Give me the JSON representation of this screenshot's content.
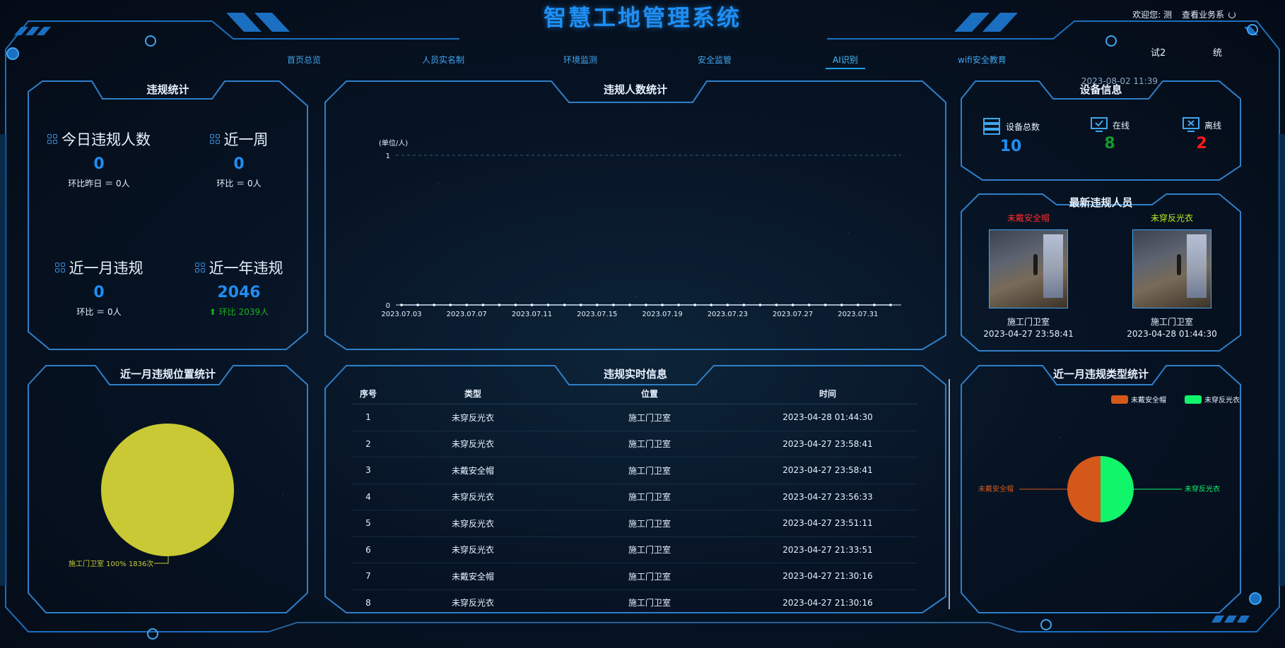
{
  "header": {
    "title": "智慧工地管理系统",
    "welcome": "欢迎您: 测",
    "view_link": "查看业务系",
    "nav": [
      "首页总览",
      "人员实名制",
      "环境监测",
      "安全监管",
      "AI识别",
      "wifi安全教育"
    ],
    "active_nav": "AI识别",
    "right_1": "试2",
    "right_2": "统",
    "datetime": "2023-08-02 11:39"
  },
  "violation_stats": {
    "title": "违规统计",
    "today": {
      "label": "今日违规人数",
      "value": "0",
      "sub": "环比昨日 ＝ 0人"
    },
    "week": {
      "label": "近一周",
      "value": "0",
      "sub": "环比 ＝ 0人"
    },
    "month": {
      "label": "近一月违规",
      "value": "0",
      "sub": "环比 ＝ 0人"
    },
    "year": {
      "label": "近一年违规",
      "value": "2046",
      "sub": "环比 2039人"
    }
  },
  "people_chart": {
    "title": "违规人数统计",
    "unit": "(单位/人)"
  },
  "chart_data": [
    {
      "type": "line",
      "title": "违规人数统计",
      "ylabel": "(单位/人)",
      "ylim": [
        0,
        1
      ],
      "y_ticks": [
        "0",
        "1"
      ],
      "x": [
        "2023.07.03",
        "2023.07.04",
        "2023.07.05",
        "2023.07.06",
        "2023.07.07",
        "2023.07.08",
        "2023.07.09",
        "2023.07.10",
        "2023.07.11",
        "2023.07.12",
        "2023.07.13",
        "2023.07.14",
        "2023.07.15",
        "2023.07.16",
        "2023.07.17",
        "2023.07.18",
        "2023.07.19",
        "2023.07.20",
        "2023.07.21",
        "2023.07.22",
        "2023.07.23",
        "2023.07.24",
        "2023.07.25",
        "2023.07.26",
        "2023.07.27",
        "2023.07.28",
        "2023.07.29",
        "2023.07.30",
        "2023.07.31",
        "2023.08.01",
        "2023.08.02"
      ],
      "x_tick_labels": [
        "2023.07.03",
        "2023.07.07",
        "2023.07.11",
        "2023.07.15",
        "2023.07.19",
        "2023.07.23",
        "2023.07.27",
        "2023.07.31"
      ],
      "series": [
        {
          "values": [
            0,
            0,
            0,
            0,
            0,
            0,
            0,
            0,
            0,
            0,
            0,
            0,
            0,
            0,
            0,
            0,
            0,
            0,
            0,
            0,
            0,
            0,
            0,
            0,
            0,
            0,
            0,
            0,
            0,
            0,
            0
          ]
        }
      ],
      "color": "#ffffff"
    },
    {
      "type": "pie",
      "title": "近一月违规位置统计",
      "slices": [
        {
          "label": "施工门卫室 100% 1836次",
          "value": 1836,
          "color": "#c8c934"
        }
      ]
    },
    {
      "type": "pie",
      "title": "近一月违规类型统计",
      "legend": [
        "未戴安全帽",
        "未穿反光衣"
      ],
      "slices": [
        {
          "label": "未戴安全帽",
          "value": 50,
          "color": "#d4581a"
        },
        {
          "label": "未穿反光衣",
          "value": 50,
          "color": "#10f56a"
        }
      ]
    }
  ],
  "location_chart": {
    "title": "近一月违规位置统计",
    "label": "施工门卫室 100% 1836次"
  },
  "device_info": {
    "title": "设备信息",
    "total": {
      "label": "设备总数",
      "value": "10",
      "color": "#1f8df2"
    },
    "online": {
      "label": "在线",
      "value": "8",
      "color": "#129a2a"
    },
    "offline": {
      "label": "离线",
      "value": "2",
      "color": "#ff1a1a"
    }
  },
  "latest": {
    "title": "最新违规人员",
    "people": [
      {
        "tag": "未戴安全帽",
        "tag_color": "#ff2a2a",
        "location": "施工门卫室",
        "time": "2023-04-27 23:58:41"
      },
      {
        "tag": "未穿反光衣",
        "tag_color": "#b7f21c",
        "location": "施工门卫室",
        "time": "2023-04-28 01:44:30"
      }
    ]
  },
  "realtime": {
    "title": "违规实时信息",
    "columns": [
      "序号",
      "类型",
      "位置",
      "时间"
    ],
    "rows": [
      [
        "1",
        "未穿反光衣",
        "施工门卫室",
        "2023-04-28 01:44:30"
      ],
      [
        "2",
        "未穿反光衣",
        "施工门卫室",
        "2023-04-27 23:58:41"
      ],
      [
        "3",
        "未戴安全帽",
        "施工门卫室",
        "2023-04-27 23:58:41"
      ],
      [
        "4",
        "未穿反光衣",
        "施工门卫室",
        "2023-04-27 23:56:33"
      ],
      [
        "5",
        "未穿反光衣",
        "施工门卫室",
        "2023-04-27 23:51:11"
      ],
      [
        "6",
        "未穿反光衣",
        "施工门卫室",
        "2023-04-27 21:33:51"
      ],
      [
        "7",
        "未戴安全帽",
        "施工门卫室",
        "2023-04-27 21:30:16"
      ],
      [
        "8",
        "未穿反光衣",
        "施工门卫室",
        "2023-04-27 21:30:16"
      ]
    ]
  },
  "type_chart": {
    "title": "近一月违规类型统计"
  }
}
